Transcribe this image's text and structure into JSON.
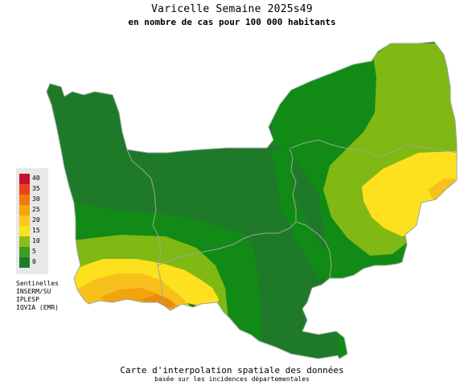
{
  "title": "Varicelle Semaine 2025s49",
  "subtitle": "en nombre de cas pour 100 000 habitants",
  "legend": {
    "levels": [
      {
        "label": "40",
        "color": "#c8102e"
      },
      {
        "label": "35",
        "color": "#e8441a"
      },
      {
        "label": "30",
        "color": "#f07a10"
      },
      {
        "label": "25",
        "color": "#f5a60a"
      },
      {
        "label": "20",
        "color": "#fcc820"
      },
      {
        "label": "15",
        "color": "#f9e21e"
      },
      {
        "label": "10",
        "color": "#8cbc1a"
      },
      {
        "label": "5",
        "color": "#3e9c22"
      },
      {
        "label": "0",
        "color": "#1e7a28"
      }
    ]
  },
  "sources": [
    "Sentinelles",
    "INSERM/SU",
    "IPLESP",
    "IQVIA (EMR)"
  ],
  "caption": {
    "line1": "Carte d'interpolation spatiale des données",
    "line2": "basée sur les incidences départementales"
  },
  "map_colors": {
    "dark_green": "#1e7a28",
    "green": "#128a16",
    "light_green": "#80b814",
    "yellow": "#fde01e",
    "orange_yellow": "#f8c01c",
    "orange": "#f3a30e",
    "deep_orange": "#ec8a0a",
    "border": "#9aa99a"
  }
}
